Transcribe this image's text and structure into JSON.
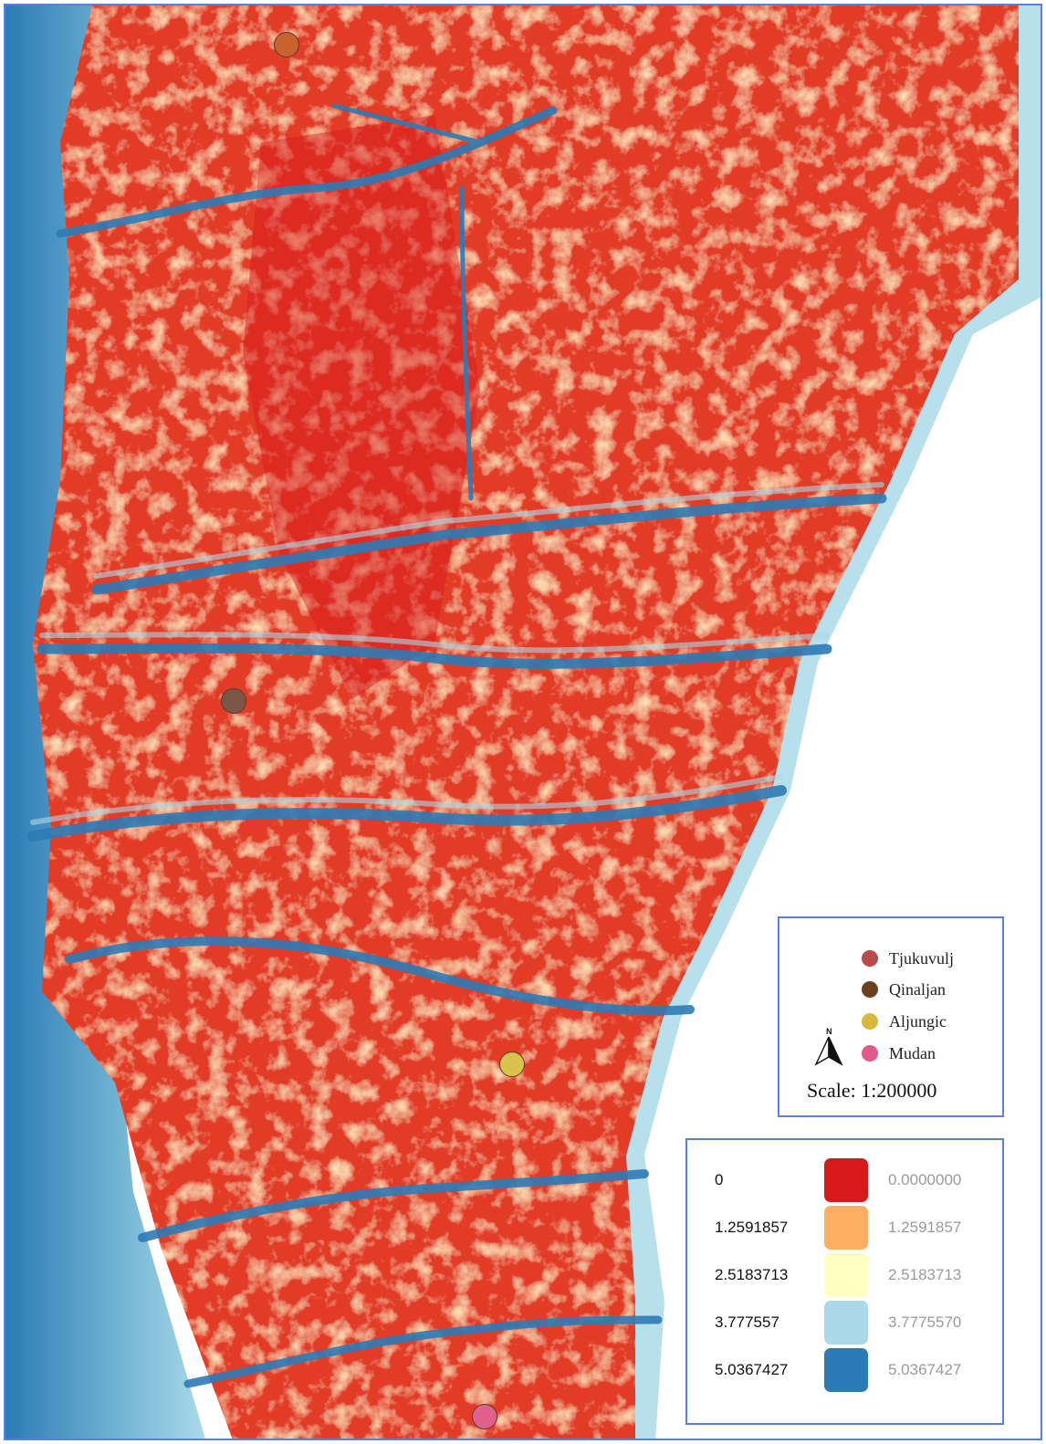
{
  "map": {
    "colors": {
      "low": "#d7191c",
      "mid_low": "#fdae61",
      "mid": "#ffffbf",
      "mid_high": "#abd9e9",
      "high": "#2c7bb6",
      "background": "#ffffff",
      "frame": "#5b7fe0"
    },
    "markers": [
      {
        "name": "Tjukuvulj",
        "color": "#c9622c"
      },
      {
        "name": "Qinaljan",
        "color": "#7a5646"
      },
      {
        "name": "Aljungic",
        "color": "#d9c24a"
      },
      {
        "name": "Mudan",
        "color": "#e0608e"
      }
    ]
  },
  "legend": {
    "places": [
      {
        "label": "Tjukuvulj",
        "color": "#b84a4a"
      },
      {
        "label": "Qinaljan",
        "color": "#6e3f1c"
      },
      {
        "label": "Aljungic",
        "color": "#d6b83e"
      },
      {
        "label": "Mudan",
        "color": "#e05a8a"
      }
    ],
    "north_icon": "north-arrow-icon",
    "north_label": "N",
    "scale": "Scale: 1:200000"
  },
  "ramp": [
    {
      "label": "0",
      "value": "0.0000000",
      "color": "#d7191c"
    },
    {
      "label": "1.2591857",
      "value": "1.2591857",
      "color": "#fdae61"
    },
    {
      "label": "2.5183713",
      "value": "2.5183713",
      "color": "#ffffbf"
    },
    {
      "label": "3.777557",
      "value": "3.7775570",
      "color": "#abd9e9"
    },
    {
      "label": "5.0367427",
      "value": "5.0367427",
      "color": "#2c7bb6"
    }
  ]
}
